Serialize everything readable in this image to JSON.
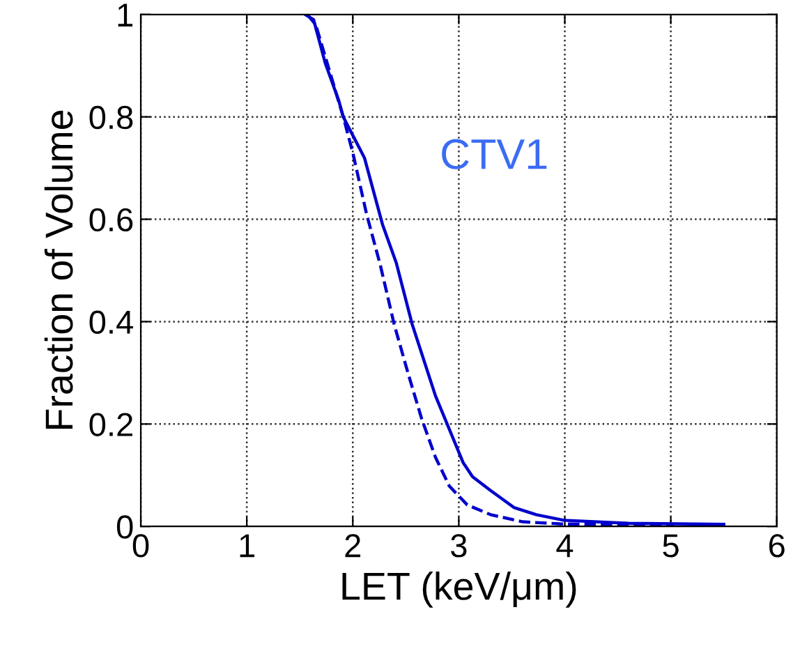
{
  "chart_data": {
    "type": "line",
    "xlabel": "LET (keV/μm)",
    "ylabel": "Fraction of Volume",
    "annotations": [
      "CTV1"
    ],
    "series": [
      {
        "color": "#0000cc",
        "line_style": "solid",
        "x": [
          1.55,
          1.63,
          1.74,
          1.87,
          1.91,
          2.11,
          2.28,
          2.41,
          2.56,
          2.78,
          3.04,
          3.13,
          3.3,
          3.52,
          3.73,
          3.99,
          4.6,
          5.5
        ],
        "values": [
          1.0,
          0.99,
          0.905,
          0.83,
          0.8,
          0.72,
          0.59,
          0.515,
          0.395,
          0.255,
          0.125,
          0.097,
          0.07,
          0.037,
          0.023,
          0.012,
          0.006,
          0.004
        ]
      },
      {
        "color": "#0000cc",
        "line_style": "dashed",
        "x": [
          1.57,
          1.65,
          1.91,
          2.0,
          2.13,
          2.26,
          2.39,
          2.52,
          2.65,
          2.78,
          2.91,
          3.08,
          3.3,
          3.6,
          3.95,
          4.6,
          5.03
        ],
        "values": [
          1.0,
          0.98,
          0.8,
          0.73,
          0.61,
          0.51,
          0.395,
          0.3,
          0.21,
          0.135,
          0.079,
          0.042,
          0.023,
          0.009,
          0.005,
          0.003,
          0.002
        ]
      }
    ],
    "xlim": [
      0,
      6
    ],
    "ylim": [
      0,
      1
    ],
    "xticks": [
      0,
      1,
      2,
      3,
      4,
      5,
      6
    ],
    "yticks": [
      0,
      0.2,
      0.4,
      0.6,
      0.8,
      1
    ],
    "grid": true,
    "legend": false
  }
}
